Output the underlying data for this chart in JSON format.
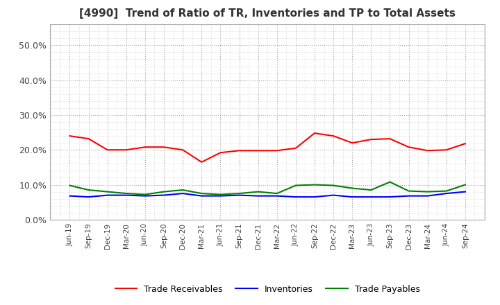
{
  "title": "[4990]  Trend of Ratio of TR, Inventories and TP to Total Assets",
  "x_labels": [
    "Jun-19",
    "Sep-19",
    "Dec-19",
    "Mar-20",
    "Jun-20",
    "Sep-20",
    "Dec-20",
    "Mar-21",
    "Jun-21",
    "Sep-21",
    "Dec-21",
    "Mar-22",
    "Jun-22",
    "Sep-22",
    "Dec-22",
    "Mar-23",
    "Jun-23",
    "Sep-23",
    "Dec-23",
    "Mar-24",
    "Jun-24",
    "Sep-24"
  ],
  "trade_receivables": [
    0.24,
    0.232,
    0.2,
    0.2,
    0.208,
    0.208,
    0.2,
    0.165,
    0.192,
    0.198,
    0.198,
    0.198,
    0.205,
    0.248,
    0.24,
    0.22,
    0.23,
    0.232,
    0.208,
    0.198,
    0.2,
    0.218
  ],
  "inventories": [
    0.068,
    0.065,
    0.07,
    0.07,
    0.068,
    0.07,
    0.075,
    0.068,
    0.068,
    0.07,
    0.068,
    0.068,
    0.065,
    0.065,
    0.07,
    0.065,
    0.065,
    0.065,
    0.068,
    0.068,
    0.075,
    0.08
  ],
  "trade_payables": [
    0.098,
    0.085,
    0.08,
    0.075,
    0.072,
    0.08,
    0.085,
    0.075,
    0.072,
    0.075,
    0.08,
    0.075,
    0.098,
    0.1,
    0.098,
    0.09,
    0.085,
    0.108,
    0.082,
    0.08,
    0.082,
    0.1
  ],
  "colors": {
    "trade_receivables": "#ff0000",
    "inventories": "#0000ff",
    "trade_payables": "#008000"
  },
  "ylim": [
    0.0,
    0.56
  ],
  "yticks": [
    0.0,
    0.1,
    0.2,
    0.3,
    0.4,
    0.5
  ],
  "ytick_labels": [
    "0.0%",
    "10.0%",
    "20.0%",
    "30.0%",
    "40.0%",
    "50.0%"
  ],
  "background_color": "#ffffff",
  "grid_color": "#aaaaaa",
  "legend_labels": [
    "Trade Receivables",
    "Inventories",
    "Trade Payables"
  ]
}
